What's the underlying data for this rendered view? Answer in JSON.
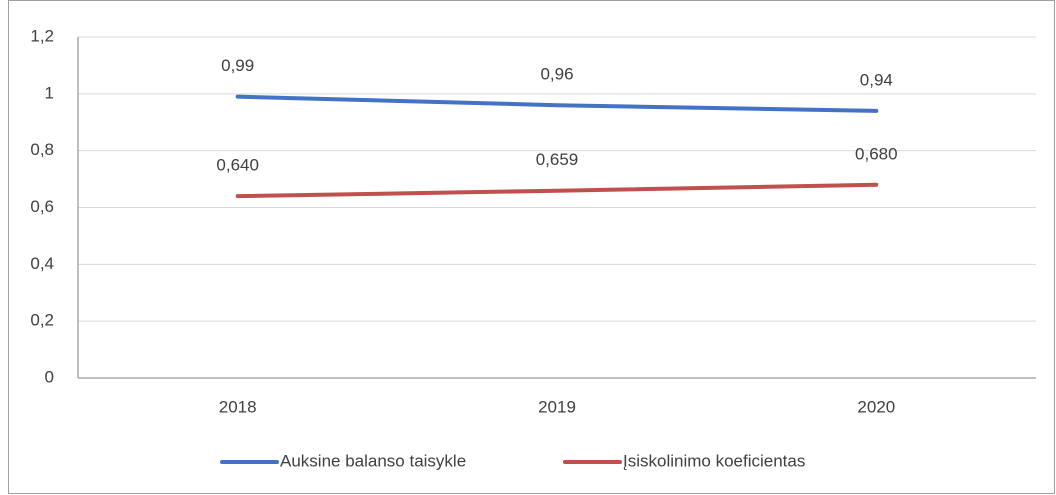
{
  "chart_data": {
    "type": "line",
    "categories": [
      "2018",
      "2019",
      "2020"
    ],
    "series": [
      {
        "name": "Auksine balanso taisykle",
        "color": "#4472c4",
        "values": [
          0.99,
          0.96,
          0.94
        ],
        "value_labels": [
          "0,99",
          "0,96",
          "0,94"
        ]
      },
      {
        "name": "Įsiskolinimo koeficientas",
        "color": "#c0504d",
        "values": [
          0.64,
          0.659,
          0.68
        ],
        "value_labels": [
          "0,640",
          "0,659",
          "0,680"
        ]
      }
    ],
    "ylim": [
      0,
      1.2
    ],
    "yticks": [
      0,
      {
        "value": 0.2,
        "label": "0,2"
      },
      {
        "value": 0.4,
        "label": "0,4"
      },
      {
        "value": 0.6,
        "label": "0,6"
      },
      {
        "value": 0.8,
        "label": "0,8"
      },
      1,
      {
        "value": 1.2,
        "label": "1,2"
      }
    ],
    "grid": true,
    "legend": "bottom"
  }
}
